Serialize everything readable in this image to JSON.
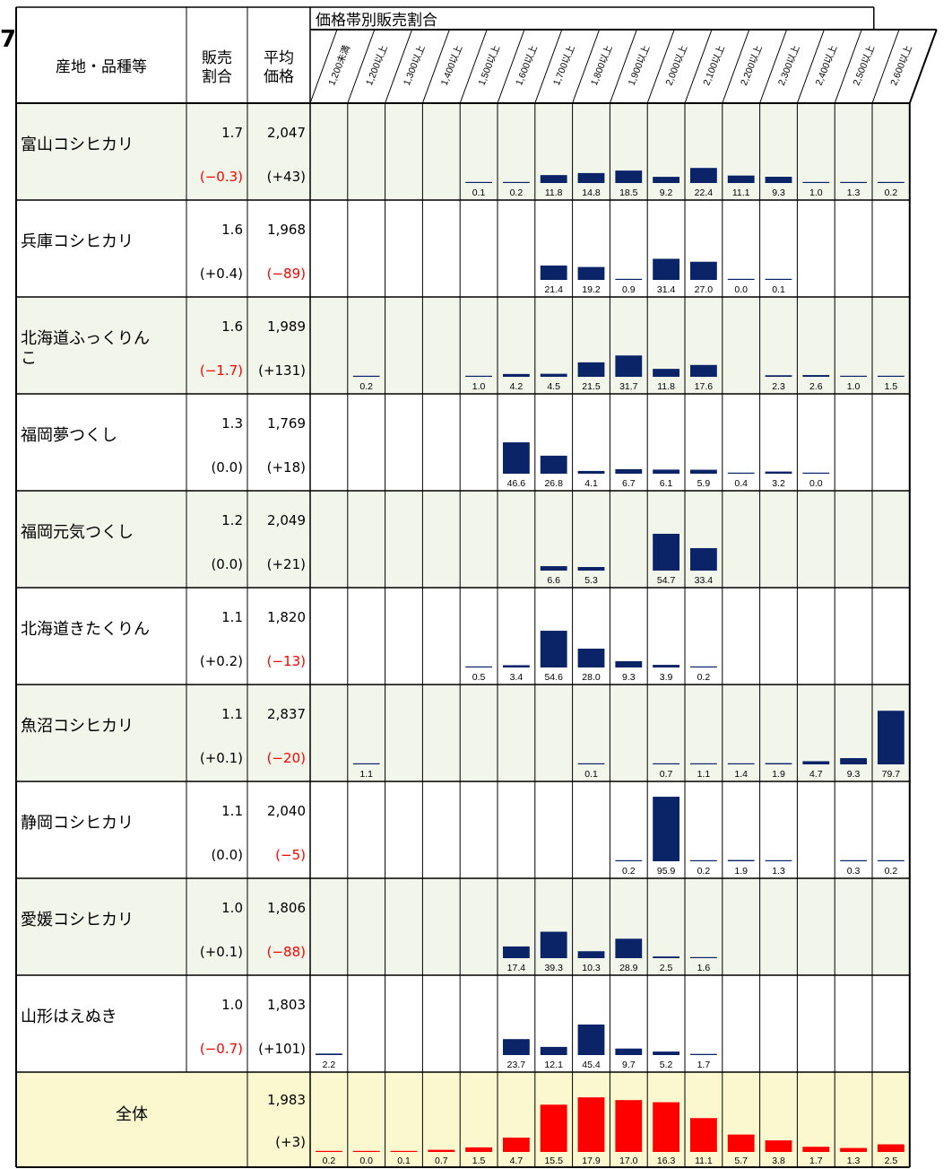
{
  "page": {
    "left_marker": "7"
  },
  "header": {
    "group_label": "価格帯別販売割合",
    "col_origin": "産地・品種等",
    "col_share": "販売\n割合",
    "col_avg_price": "平均\n価格"
  },
  "colors": {
    "row_shaded": "#f2f5ea",
    "row_plain": "#ffffff",
    "total_row": "#fbf8cf",
    "bar": "#0b2367",
    "total_bar": "#ff0000",
    "negative_text": "#ff0000",
    "grid": "#000000"
  },
  "chart_data": {
    "type": "table",
    "price_bands": [
      "1,200未満",
      "1,200以上",
      "1,300以上",
      "1,400以上",
      "1,500以上",
      "1,600以上",
      "1,700以上",
      "1,800以上",
      "1,900以上",
      "2,000以上",
      "2,100以上",
      "2,200以上",
      "2,300以上",
      "2,400以上",
      "2,500以上",
      "2,600以上"
    ],
    "bar_max": 100,
    "rows": [
      {
        "name": "富山コシヒカリ",
        "share": "1.7",
        "share_change": "(−0.3)",
        "share_change_negative": true,
        "avg_price": "2,047",
        "price_change": "(+43)",
        "price_change_negative": false,
        "values": [
          null,
          null,
          null,
          null,
          0.1,
          0.2,
          11.8,
          14.8,
          18.5,
          9.2,
          22.4,
          11.1,
          9.3,
          1.0,
          1.3,
          0.2
        ]
      },
      {
        "name": "兵庫コシヒカリ",
        "share": "1.6",
        "share_change": "(+0.4)",
        "share_change_negative": false,
        "avg_price": "1,968",
        "price_change": "(−89)",
        "price_change_negative": true,
        "values": [
          null,
          null,
          null,
          null,
          null,
          null,
          21.4,
          19.2,
          0.9,
          31.4,
          27.0,
          0.0,
          0.1,
          null,
          null,
          null
        ]
      },
      {
        "name": "北海道ふっくりんこ",
        "share": "1.6",
        "share_change": "(−1.7)",
        "share_change_negative": true,
        "avg_price": "1,989",
        "price_change": "(+131)",
        "price_change_negative": false,
        "values": [
          null,
          0.2,
          null,
          null,
          1.0,
          4.2,
          4.5,
          21.5,
          31.7,
          11.8,
          17.6,
          null,
          2.3,
          2.6,
          1.0,
          1.5
        ]
      },
      {
        "name": "福岡夢つくし",
        "share": "1.3",
        "share_change": "(0.0)",
        "share_change_negative": false,
        "avg_price": "1,769",
        "price_change": "(+18)",
        "price_change_negative": false,
        "values": [
          null,
          null,
          null,
          null,
          null,
          46.6,
          26.8,
          4.1,
          6.7,
          6.1,
          5.9,
          0.4,
          3.2,
          0.0,
          null,
          null
        ]
      },
      {
        "name": "福岡元気つくし",
        "share": "1.2",
        "share_change": "(0.0)",
        "share_change_negative": false,
        "avg_price": "2,049",
        "price_change": "(+21)",
        "price_change_negative": false,
        "values": [
          null,
          null,
          null,
          null,
          null,
          null,
          6.6,
          5.3,
          null,
          54.7,
          33.4,
          null,
          null,
          null,
          null,
          null
        ]
      },
      {
        "name": "北海道きたくりん",
        "share": "1.1",
        "share_change": "(+0.2)",
        "share_change_negative": false,
        "avg_price": "1,820",
        "price_change": "(−13)",
        "price_change_negative": true,
        "values": [
          null,
          null,
          null,
          null,
          0.5,
          3.4,
          54.6,
          28.0,
          9.3,
          3.9,
          0.2,
          null,
          null,
          null,
          null,
          null
        ]
      },
      {
        "name": "魚沼コシヒカリ",
        "share": "1.1",
        "share_change": "(+0.1)",
        "share_change_negative": false,
        "avg_price": "2,837",
        "price_change": "(−20)",
        "price_change_negative": true,
        "values": [
          null,
          1.1,
          null,
          null,
          null,
          null,
          null,
          0.1,
          null,
          0.7,
          1.1,
          1.4,
          1.9,
          4.7,
          9.3,
          79.7
        ]
      },
      {
        "name": "静岡コシヒカリ",
        "share": "1.1",
        "share_change": "(0.0)",
        "share_change_negative": false,
        "avg_price": "2,040",
        "price_change": "(−5)",
        "price_change_negative": true,
        "values": [
          null,
          null,
          null,
          null,
          null,
          null,
          null,
          null,
          0.2,
          95.9,
          0.2,
          1.9,
          1.3,
          null,
          0.3,
          0.2
        ]
      },
      {
        "name": "愛媛コシヒカリ",
        "share": "1.0",
        "share_change": "(+0.1)",
        "share_change_negative": false,
        "avg_price": "1,806",
        "price_change": "(−88)",
        "price_change_negative": true,
        "values": [
          null,
          null,
          null,
          null,
          null,
          17.4,
          39.3,
          10.3,
          28.9,
          2.5,
          1.6,
          null,
          null,
          null,
          null,
          null
        ]
      },
      {
        "name": "山形はえぬき",
        "share": "1.0",
        "share_change": "(−0.7)",
        "share_change_negative": true,
        "avg_price": "1,803",
        "price_change": "(+101)",
        "price_change_negative": false,
        "values": [
          2.2,
          null,
          null,
          null,
          null,
          23.7,
          12.1,
          45.4,
          9.7,
          5.2,
          1.7,
          null,
          null,
          null,
          null,
          null
        ]
      }
    ],
    "total": {
      "name": "全体",
      "avg_price": "1,983",
      "price_change": "(+3)",
      "values": [
        0.2,
        0.0,
        0.1,
        0.7,
        1.5,
        4.7,
        15.5,
        17.9,
        17.0,
        16.3,
        11.1,
        5.7,
        3.8,
        1.7,
        1.3,
        2.5
      ],
      "bar_max": 20
    }
  }
}
